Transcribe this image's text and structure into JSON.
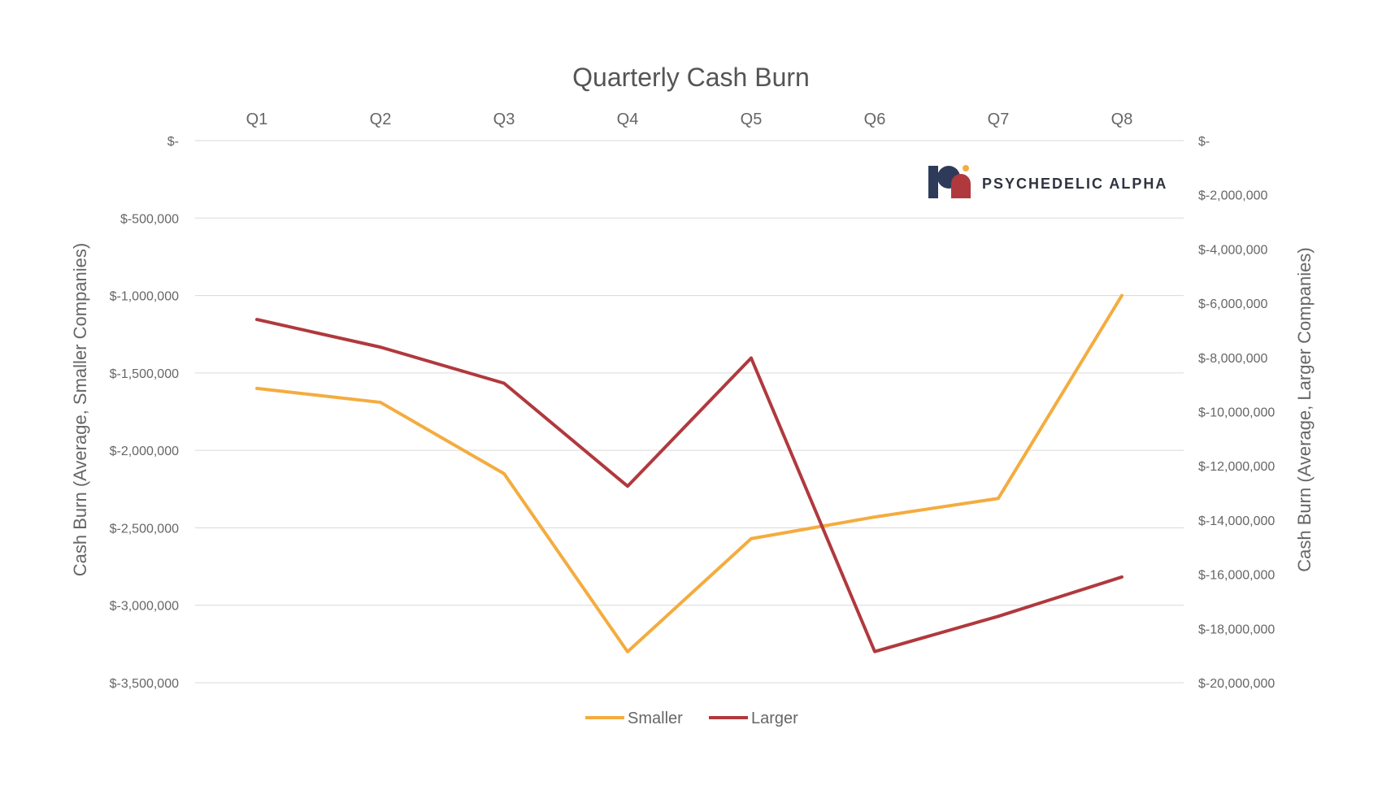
{
  "chart_data": {
    "type": "line",
    "title": "Quarterly Cash Burn",
    "categories": [
      "Q1",
      "Q2",
      "Q3",
      "Q4",
      "Q5",
      "Q6",
      "Q7",
      "Q8"
    ],
    "series": [
      {
        "name": "Smaller",
        "axis": "left",
        "color": "#f4ac3f",
        "values": [
          -1600000,
          -1690000,
          -2150000,
          -3300000,
          -2570000,
          -2430000,
          -2310000,
          -1000000
        ]
      },
      {
        "name": "Larger",
        "axis": "right",
        "color": "#b0393d",
        "values": [
          -6600000,
          -7620000,
          -8950000,
          -12750000,
          -8020000,
          -18850000,
          -17550000,
          -16100000
        ]
      }
    ],
    "y_left": {
      "label": "Cash Burn (Average, Smaller Companies)",
      "ylim": [
        -3500000,
        0
      ],
      "ticks": [
        {
          "value": 0,
          "label": "$-"
        },
        {
          "value": -500000,
          "label": "$-500,000"
        },
        {
          "value": -1000000,
          "label": "$-1,000,000"
        },
        {
          "value": -1500000,
          "label": "$-1,500,000"
        },
        {
          "value": -2000000,
          "label": "$-2,000,000"
        },
        {
          "value": -2500000,
          "label": "$-2,500,000"
        },
        {
          "value": -3000000,
          "label": "$-3,000,000"
        },
        {
          "value": -3500000,
          "label": "$-3,500,000"
        }
      ]
    },
    "y_right": {
      "label": "Cash Burn (Average, Larger Companies)",
      "ylim": [
        -20000000,
        0
      ],
      "ticks": [
        {
          "value": 0,
          "label": "$-"
        },
        {
          "value": -2000000,
          "label": "$-2,000,000"
        },
        {
          "value": -4000000,
          "label": "$-4,000,000"
        },
        {
          "value": -6000000,
          "label": "$-6,000,000"
        },
        {
          "value": -8000000,
          "label": "$-8,000,000"
        },
        {
          "value": -10000000,
          "label": "$-10,000,000"
        },
        {
          "value": -12000000,
          "label": "$-12,000,000"
        },
        {
          "value": -14000000,
          "label": "$-14,000,000"
        },
        {
          "value": -16000000,
          "label": "$-16,000,000"
        },
        {
          "value": -18000000,
          "label": "$-18,000,000"
        },
        {
          "value": -20000000,
          "label": "$-20,000,000"
        }
      ]
    },
    "grid": true,
    "x_axis_position": "top",
    "legend_position": "bottom"
  },
  "logo": {
    "text": "PSYCHEDELIC ALPHA",
    "colors": {
      "dark": "#2d3a5a",
      "red": "#b0393d",
      "dot": "#f4ac3f"
    }
  }
}
